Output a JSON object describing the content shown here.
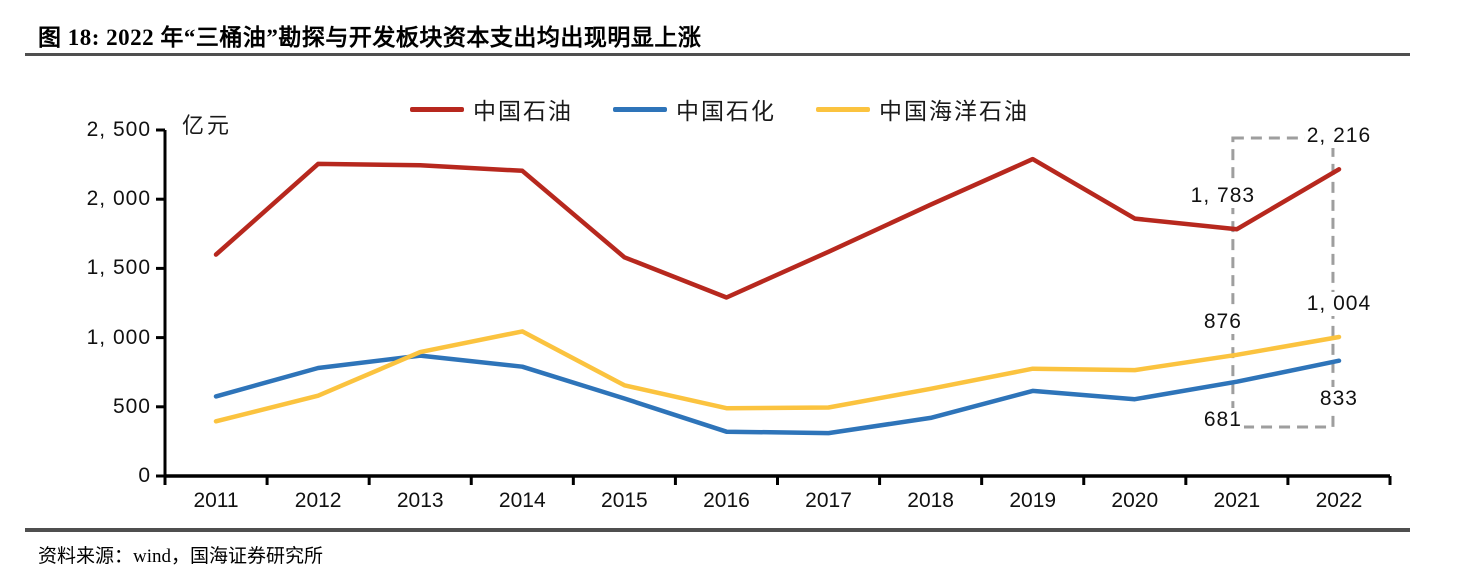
{
  "header": {
    "title": "图 18:  2022 年“三桶油”勘探与开发板块资本支出均出现明显上涨"
  },
  "footer": {
    "source": "资料来源：wind，国海证券研究所"
  },
  "chart_data": {
    "type": "line",
    "title": "2022 年“三桶油”勘探与开发板块资本支出均出现明显上涨",
    "unit_label": "亿元",
    "categories": [
      "2011",
      "2012",
      "2013",
      "2014",
      "2015",
      "2016",
      "2017",
      "2018",
      "2019",
      "2020",
      "2021",
      "2022"
    ],
    "ylim": [
      0,
      2500
    ],
    "yticks": [
      {
        "value": 0,
        "label": "0"
      },
      {
        "value": 500,
        "label": "500"
      },
      {
        "value": 1000,
        "label": "1, 000"
      },
      {
        "value": 1500,
        "label": "1, 500"
      },
      {
        "value": 2000,
        "label": "2, 000"
      },
      {
        "value": 2500,
        "label": "2, 500"
      }
    ],
    "grid": false,
    "legend_position": "top",
    "series": [
      {
        "name": "中国石油",
        "color": "#B7281E",
        "values": [
          1600,
          2255,
          2245,
          2205,
          1580,
          1290,
          1620,
          1960,
          2290,
          1860,
          1783,
          2216
        ]
      },
      {
        "name": "中国石化",
        "color": "#2E74B9",
        "values": [
          575,
          780,
          870,
          790,
          560,
          320,
          310,
          420,
          615,
          555,
          681,
          833
        ]
      },
      {
        "name": "中国海洋石油",
        "color": "#FBC33F",
        "values": [
          395,
          580,
          895,
          1045,
          655,
          490,
          495,
          630,
          775,
          765,
          876,
          1004
        ]
      }
    ],
    "annotations": [
      {
        "series": "中国石油",
        "category": "2021",
        "value": 1783,
        "label": "1, 783",
        "placement": "above"
      },
      {
        "series": "中国石油",
        "category": "2022",
        "value": 2216,
        "label": "2, 216",
        "placement": "above"
      },
      {
        "series": "中国海洋石油",
        "category": "2021",
        "value": 876,
        "label": "876",
        "placement": "above"
      },
      {
        "series": "中国海洋石油",
        "category": "2022",
        "value": 1004,
        "label": "1, 004",
        "placement": "above"
      },
      {
        "series": "中国石化",
        "category": "2021",
        "value": 681,
        "label": "681",
        "placement": "below"
      },
      {
        "series": "中国石化",
        "category": "2022",
        "value": 833,
        "label": "833",
        "placement": "below"
      }
    ],
    "highlight_box": {
      "categories": [
        "2021",
        "2022"
      ],
      "style": "dashed"
    }
  }
}
